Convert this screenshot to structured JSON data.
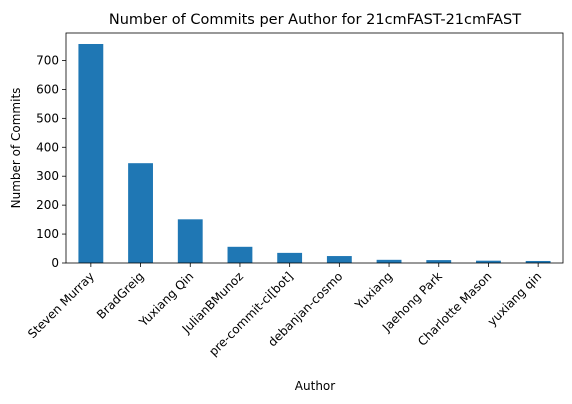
{
  "chart_data": {
    "type": "bar",
    "title": "Number of Commits per Author for 21cmFAST-21cmFAST",
    "xlabel": "Author",
    "ylabel": "Number of Commits",
    "categories": [
      "Steven Murray",
      "BradGreig",
      "Yuxiang Qin",
      "JulianBMunoz",
      "pre-commit-ci[bot]",
      "debanjan-cosmo",
      "Yuxiang",
      "Jaehong Park",
      "Charlotte Mason",
      "yuxiang qin"
    ],
    "values": [
      757,
      345,
      151,
      56,
      35,
      24,
      11,
      10,
      8,
      7
    ],
    "ylim": [
      0,
      795
    ],
    "yticks": [
      0,
      100,
      200,
      300,
      400,
      500,
      600,
      700
    ],
    "bar_color": "#1f77b4",
    "grid": false,
    "legend": false
  }
}
